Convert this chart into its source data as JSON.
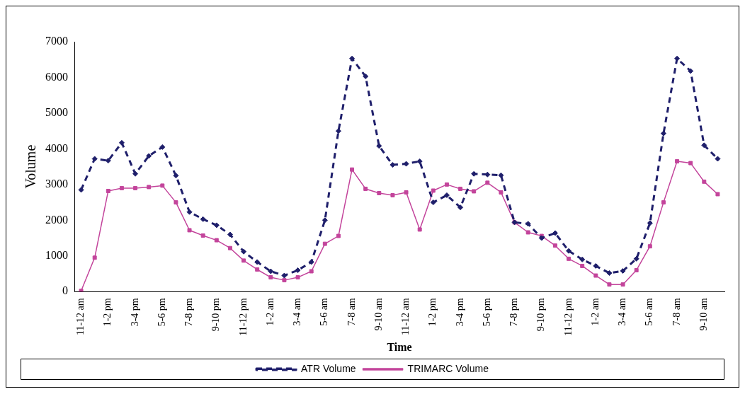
{
  "chart_data": {
    "type": "line",
    "xlabel": "Time",
    "ylabel": "Volume",
    "categories": [
      "11-12 am",
      null,
      "1-2 pm",
      null,
      "3-4 pm",
      null,
      "5-6 pm",
      null,
      "7-8 pm",
      null,
      "9-10 pm",
      null,
      "11-12 pm",
      null,
      "1-2 am",
      null,
      "3-4 am",
      null,
      "5-6 am",
      null,
      "7-8 am",
      null,
      "9-10 am",
      null,
      "11-12 am",
      null,
      "1-2 pm",
      null,
      "3-4 pm",
      null,
      "5-6 pm",
      null,
      "7-8 pm",
      null,
      "9-10 pm",
      null,
      "11-12 pm",
      null,
      "1-2 am",
      null,
      "3-4 am",
      null,
      "5-6 am",
      null,
      "7-8 am",
      null,
      "9-10 am",
      null
    ],
    "series": [
      {
        "name": "ATR Volume",
        "color": "#1f1f6b",
        "marker": "diamond",
        "line_style": "dashed",
        "values": [
          2850,
          3720,
          3670,
          4170,
          3300,
          3800,
          4050,
          3250,
          2230,
          2030,
          1860,
          1600,
          1120,
          830,
          570,
          450,
          600,
          830,
          2000,
          4500,
          6530,
          6030,
          4080,
          3550,
          3580,
          3650,
          2500,
          2700,
          2360,
          3300,
          3280,
          3260,
          1940,
          1900,
          1500,
          1640,
          1140,
          900,
          720,
          520,
          580,
          920,
          1920,
          4430,
          6530,
          6180,
          4100,
          3720
        ]
      },
      {
        "name": "TRIMARC Volume",
        "color": "#c3449b",
        "marker": "square",
        "line_style": "solid",
        "values": [
          20,
          950,
          2820,
          2900,
          2900,
          2930,
          2970,
          2500,
          1720,
          1570,
          1440,
          1220,
          870,
          620,
          400,
          320,
          400,
          570,
          1340,
          1560,
          3420,
          2880,
          2760,
          2700,
          2780,
          1740,
          2830,
          3000,
          2880,
          2810,
          3050,
          2780,
          1940,
          1660,
          1560,
          1290,
          920,
          720,
          450,
          200,
          200,
          600,
          1270,
          2500,
          3650,
          3600,
          3080,
          2730
        ]
      }
    ],
    "ylim": [
      0,
      7000
    ],
    "yticks": [
      0,
      1000,
      2000,
      3000,
      4000,
      5000,
      6000,
      7000
    ],
    "grid": false,
    "legend": "bottom"
  }
}
